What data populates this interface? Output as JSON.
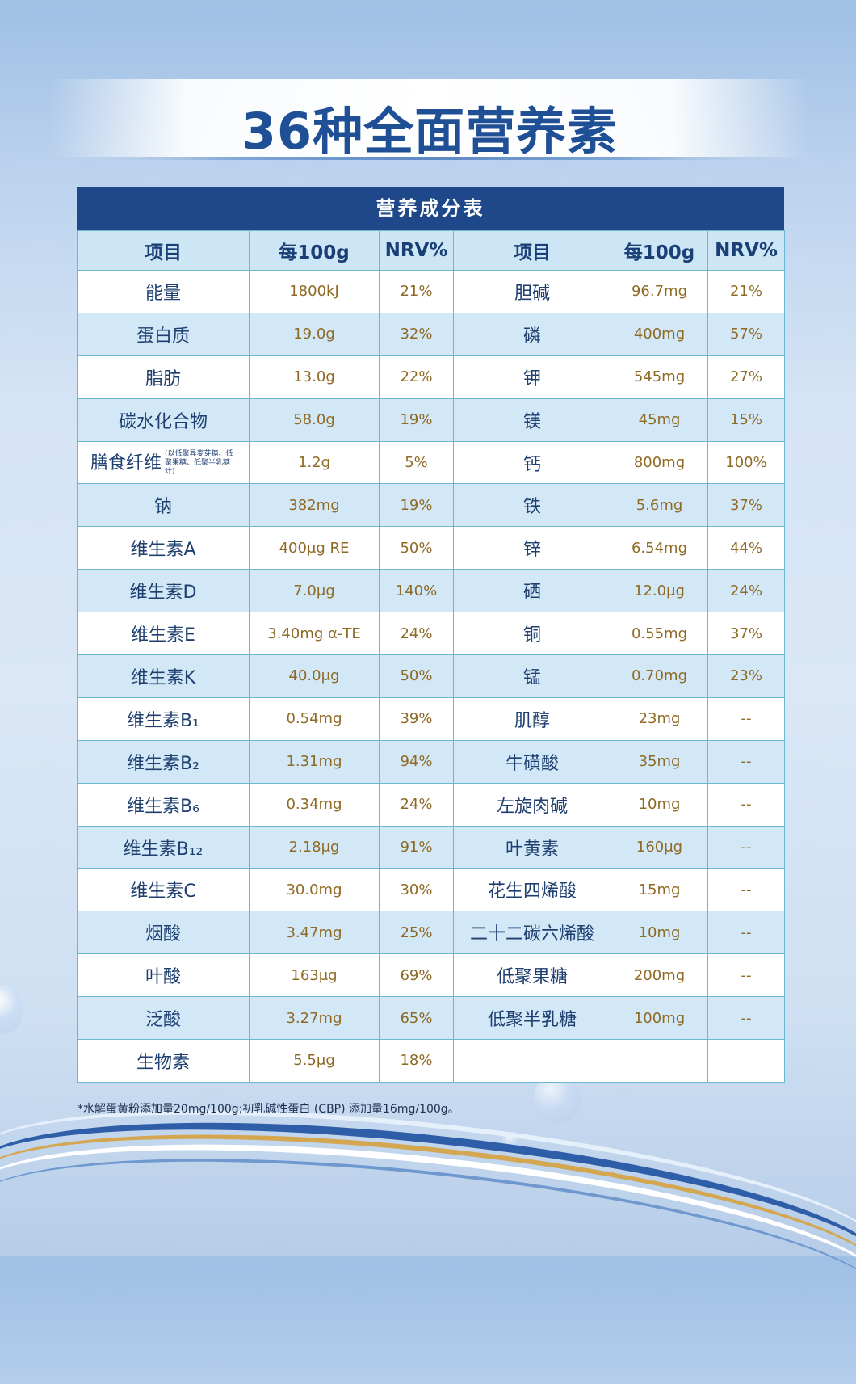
{
  "title": "36种全面营养素",
  "table": {
    "caption": "营养成分表",
    "headers": [
      "项目",
      "每100g",
      "NRV%",
      "项目",
      "每100g",
      "NRV%"
    ],
    "rows": [
      {
        "name1": "能量",
        "val1": "1800kJ",
        "nrv1": "21%",
        "name2": "胆碱",
        "val2": "96.7mg",
        "nrv2": "21%"
      },
      {
        "name1": "蛋白质",
        "val1": "19.0g",
        "nrv1": "32%",
        "name2": "磷",
        "val2": "400mg",
        "nrv2": "57%"
      },
      {
        "name1": "脂肪",
        "val1": "13.0g",
        "nrv1": "22%",
        "name2": "钾",
        "val2": "545mg",
        "nrv2": "27%"
      },
      {
        "name1": "碳水化合物",
        "val1": "58.0g",
        "nrv1": "19%",
        "name2": "镁",
        "val2": "45mg",
        "nrv2": "15%"
      },
      {
        "name1": "膳食纤维",
        "note1": "(以低聚异麦芽糖、低聚果糖、低聚半乳糖计)",
        "val1": "1.2g",
        "nrv1": "5%",
        "name2": "钙",
        "val2": "800mg",
        "nrv2": "100%"
      },
      {
        "name1": "钠",
        "val1": "382mg",
        "nrv1": "19%",
        "name2": "铁",
        "val2": "5.6mg",
        "nrv2": "37%"
      },
      {
        "name1": "维生素A",
        "val1": "400μg RE",
        "nrv1": "50%",
        "name2": "锌",
        "val2": "6.54mg",
        "nrv2": "44%"
      },
      {
        "name1": "维生素D",
        "val1": "7.0μg",
        "nrv1": "140%",
        "name2": "硒",
        "val2": "12.0μg",
        "nrv2": "24%"
      },
      {
        "name1": "维生素E",
        "val1": "3.40mg α-TE",
        "nrv1": "24%",
        "name2": "铜",
        "val2": "0.55mg",
        "nrv2": "37%"
      },
      {
        "name1": "维生素K",
        "val1": "40.0μg",
        "nrv1": "50%",
        "name2": "锰",
        "val2": "0.70mg",
        "nrv2": "23%"
      },
      {
        "name1": "维生素B₁",
        "val1": "0.54mg",
        "nrv1": "39%",
        "name2": "肌醇",
        "val2": "23mg",
        "nrv2": "--"
      },
      {
        "name1": "维生素B₂",
        "val1": "1.31mg",
        "nrv1": "94%",
        "name2": "牛磺酸",
        "val2": "35mg",
        "nrv2": "--"
      },
      {
        "name1": "维生素B₆",
        "val1": "0.34mg",
        "nrv1": "24%",
        "name2": "左旋肉碱",
        "val2": "10mg",
        "nrv2": "--"
      },
      {
        "name1": "维生素B₁₂",
        "val1": "2.18μg",
        "nrv1": "91%",
        "name2": "叶黄素",
        "val2": "160μg",
        "nrv2": "--"
      },
      {
        "name1": "维生素C",
        "val1": "30.0mg",
        "nrv1": "30%",
        "name2": "花生四烯酸",
        "val2": "15mg",
        "nrv2": "--"
      },
      {
        "name1": "烟酸",
        "val1": "3.47mg",
        "nrv1": "25%",
        "name2": "二十二碳六烯酸",
        "val2": "10mg",
        "nrv2": "--"
      },
      {
        "name1": "叶酸",
        "val1": "163μg",
        "nrv1": "69%",
        "name2": "低聚果糖",
        "val2": "200mg",
        "nrv2": "--"
      },
      {
        "name1": "泛酸",
        "val1": "3.27mg",
        "nrv1": "65%",
        "name2": "低聚半乳糖",
        "val2": "100mg",
        "nrv2": "--"
      },
      {
        "name1": "生物素",
        "val1": "5.5μg",
        "nrv1": "18%",
        "name2": "",
        "val2": "",
        "nrv2": ""
      }
    ]
  },
  "footnote": "*水解蛋黄粉添加量20mg/100g;初乳碱性蛋白 (CBP) 添加量16mg/100g。",
  "colors": {
    "title": "#1f4f95",
    "caption_bg": "#1e4889",
    "header_bg": "#cde6f6",
    "value_text": "#8f6a24",
    "name_text": "#1e3f70"
  }
}
